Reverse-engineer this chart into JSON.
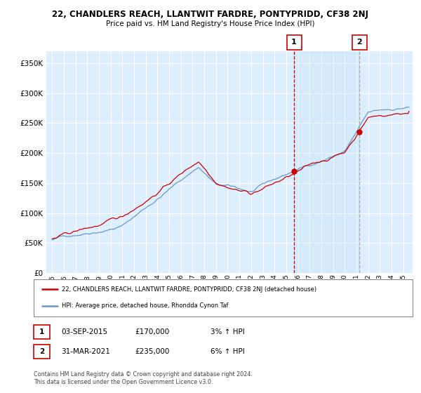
{
  "title": "22, CHANDLERS REACH, LLANTWIT FARDRE, PONTYPRIDD, CF38 2NJ",
  "subtitle": "Price paid vs. HM Land Registry's House Price Index (HPI)",
  "legend_line1": "22, CHANDLERS REACH, LLANTWIT FARDRE, PONTYPRIDD, CF38 2NJ (detached house)",
  "legend_line2": "HPI: Average price, detached house, Rhondda Cynon Taf",
  "annotation1_label": "1",
  "annotation1_date": "03-SEP-2015",
  "annotation1_price": "£170,000",
  "annotation1_hpi": "3% ↑ HPI",
  "annotation2_label": "2",
  "annotation2_date": "31-MAR-2021",
  "annotation2_price": "£235,000",
  "annotation2_hpi": "6% ↑ HPI",
  "footer": "Contains HM Land Registry data © Crown copyright and database right 2024.\nThis data is licensed under the Open Government Licence v3.0.",
  "red_color": "#cc0000",
  "blue_color": "#6699cc",
  "bg_color": "#ddeeff",
  "ylim": [
    0,
    370000
  ],
  "yticks": [
    0,
    50000,
    100000,
    150000,
    200000,
    250000,
    300000,
    350000
  ],
  "sale1_x": 2015.67,
  "sale1_y": 170000,
  "sale2_x": 2021.25,
  "sale2_y": 235000,
  "vline1_x": 2015.67,
  "vline2_x": 2021.25,
  "xlim_left": 1994.5,
  "xlim_right": 2025.8
}
